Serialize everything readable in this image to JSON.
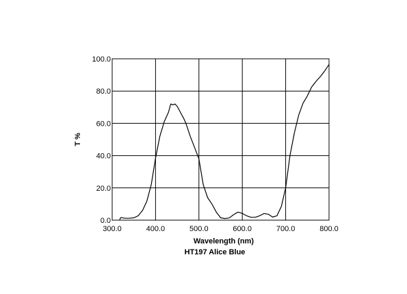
{
  "chart_data": {
    "type": "line",
    "title": "HT197 Alice Blue",
    "xlabel": "Wavelength (nm)",
    "ylabel": "T %",
    "xlim": [
      300,
      800
    ],
    "ylim": [
      0,
      100
    ],
    "grid": true,
    "x_ticks": [
      300,
      400,
      500,
      600,
      700,
      800
    ],
    "y_ticks": [
      0,
      20,
      40,
      60,
      80,
      100
    ],
    "x_tick_labels": [
      "300.0",
      "400.0",
      "500.0",
      "600.0",
      "700.0",
      "800.0"
    ],
    "y_tick_labels": [
      "0.0",
      "20.0",
      "40.0",
      "60.0",
      "80.0",
      "100.0"
    ],
    "series": [
      {
        "color": "#000000",
        "x": [
          317,
          320,
          325,
          330,
          340,
          350,
          360,
          370,
          380,
          390,
          400,
          410,
          420,
          430,
          435,
          440,
          445,
          450,
          455,
          460,
          465,
          470,
          480,
          490,
          500,
          510,
          520,
          530,
          540,
          550,
          560,
          570,
          580,
          590,
          600,
          610,
          620,
          630,
          640,
          650,
          660,
          670,
          680,
          690,
          700,
          710,
          720,
          730,
          740,
          750,
          760,
          770,
          780,
          790,
          800
        ],
        "y": [
          0.3,
          1.6,
          1.4,
          1.2,
          1.2,
          1.5,
          2.7,
          6.0,
          11.8,
          22.0,
          38.5,
          52.0,
          61.0,
          67.0,
          72.0,
          71.5,
          72.0,
          70.5,
          68.0,
          65.5,
          63.0,
          60.0,
          52.0,
          45.0,
          38.0,
          22.0,
          14.0,
          10.0,
          5.0,
          1.5,
          1.0,
          1.4,
          3.4,
          5.0,
          4.2,
          2.7,
          1.8,
          1.8,
          2.7,
          4.1,
          3.7,
          1.9,
          2.7,
          8.5,
          20.0,
          40.0,
          54.0,
          65.0,
          72.5,
          77.0,
          82.5,
          86.0,
          89.0,
          92.5,
          96.5
        ]
      }
    ]
  }
}
